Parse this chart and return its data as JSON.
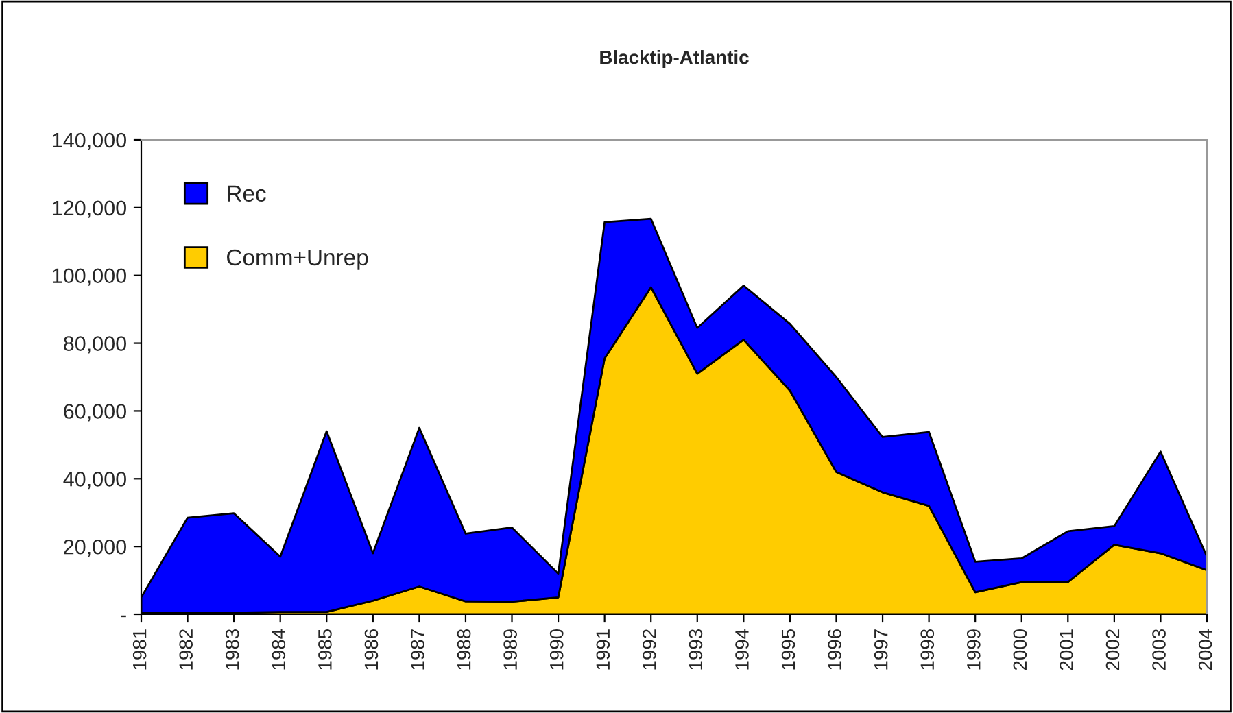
{
  "chart_data": {
    "type": "area",
    "stacked": true,
    "title": "Blacktip-Atlantic",
    "categories": [
      "1981",
      "1982",
      "1983",
      "1984",
      "1985",
      "1986",
      "1987",
      "1988",
      "1989",
      "1990",
      "1991",
      "1992",
      "1993",
      "1994",
      "1995",
      "1996",
      "1997",
      "1998",
      "1999",
      "2000",
      "2001",
      "2002",
      "2003",
      "2004"
    ],
    "series": [
      {
        "name": "Comm+Unrep",
        "color": "#ffcc00",
        "values": [
          500,
          500,
          500,
          700,
          700,
          4000,
          8200,
          3800,
          3700,
          5000,
          75500,
          96500,
          71000,
          81000,
          66000,
          42000,
          36000,
          32000,
          6500,
          9500,
          9500,
          20500,
          18000,
          13000
        ]
      },
      {
        "name": "Rec",
        "color": "#0000ff",
        "values": [
          4500,
          28000,
          29300,
          16300,
          53300,
          14000,
          46800,
          20000,
          21900,
          7000,
          40200,
          20200,
          13500,
          16000,
          19700,
          28000,
          16300,
          21800,
          9000,
          7000,
          15000,
          5500,
          30000,
          4000
        ]
      }
    ],
    "ylim": [
      0,
      140000
    ],
    "yticks": [
      {
        "value": 0,
        "label": "-"
      },
      {
        "value": 20000,
        "label": "20,000"
      },
      {
        "value": 40000,
        "label": "40,000"
      },
      {
        "value": 60000,
        "label": "60,000"
      },
      {
        "value": 80000,
        "label": "80,000"
      },
      {
        "value": 100000,
        "label": "100,000"
      },
      {
        "value": 120000,
        "label": "120,000"
      },
      {
        "value": 140000,
        "label": "140,000"
      }
    ],
    "grid": false,
    "legend": "top left"
  }
}
